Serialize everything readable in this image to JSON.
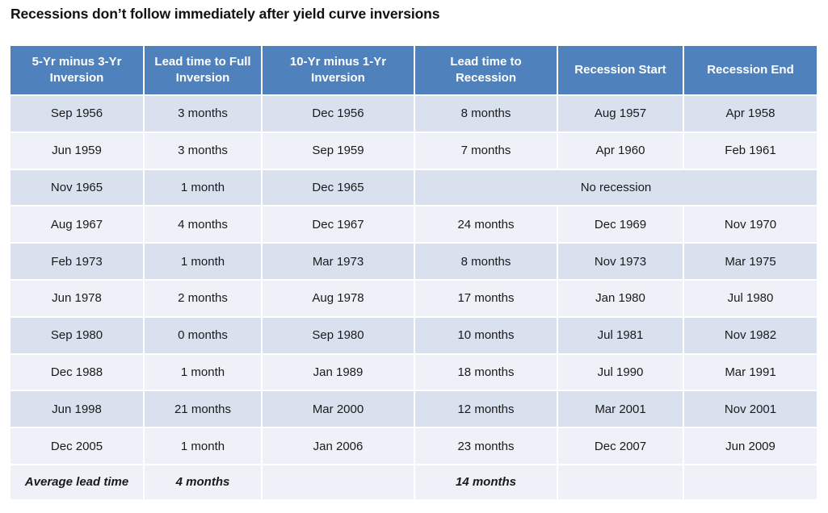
{
  "chart_data": {
    "type": "table",
    "title": "Recessions don’t follow immediately after yield curve inversions",
    "columns": [
      "5-Yr minus 3-Yr Inversion",
      "Lead time to Full Inversion",
      "10-Yr minus 1-Yr Inversion",
      "Lead time to Recession",
      "Recession Start",
      "Recession End"
    ],
    "rows": [
      [
        "Sep 1956",
        "3 months",
        "Dec 1956",
        "8 months",
        "Aug 1957",
        "Apr 1958"
      ],
      [
        "Jun 1959",
        "3 months",
        "Sep 1959",
        "7 months",
        "Apr 1960",
        "Feb 1961"
      ],
      [
        "Nov 1965",
        "1 month",
        "Dec 1965",
        "No recession",
        "",
        ""
      ],
      [
        "Aug 1967",
        "4 months",
        "Dec 1967",
        "24 months",
        "Dec 1969",
        "Nov 1970"
      ],
      [
        "Feb 1973",
        "1 month",
        "Mar 1973",
        "8 months",
        "Nov 1973",
        "Mar 1975"
      ],
      [
        "Jun 1978",
        "2 months",
        "Aug 1978",
        "17 months",
        "Jan 1980",
        "Jul 1980"
      ],
      [
        "Sep 1980",
        "0 months",
        "Sep 1980",
        "10 months",
        "Jul 1981",
        "Nov 1982"
      ],
      [
        "Dec 1988",
        "1 month",
        "Jan 1989",
        "18 months",
        "Jul 1990",
        "Mar 1991"
      ],
      [
        "Jun 1998",
        "21 months",
        "Mar 2000",
        "12 months",
        "Mar 2001",
        "Nov 2001"
      ],
      [
        "Dec 2005",
        "1 month",
        "Jan 2006",
        "23 months",
        "Dec 2007",
        "Jun 2009"
      ]
    ],
    "footer": [
      "Average lead time",
      "4 months",
      "",
      "14 months",
      "",
      ""
    ],
    "colors": {
      "header_bg": "#4f81bd",
      "header_text": "#ffffff",
      "row_band_dark": "#d9e1ef",
      "row_band_light": "#eef1f7"
    }
  }
}
